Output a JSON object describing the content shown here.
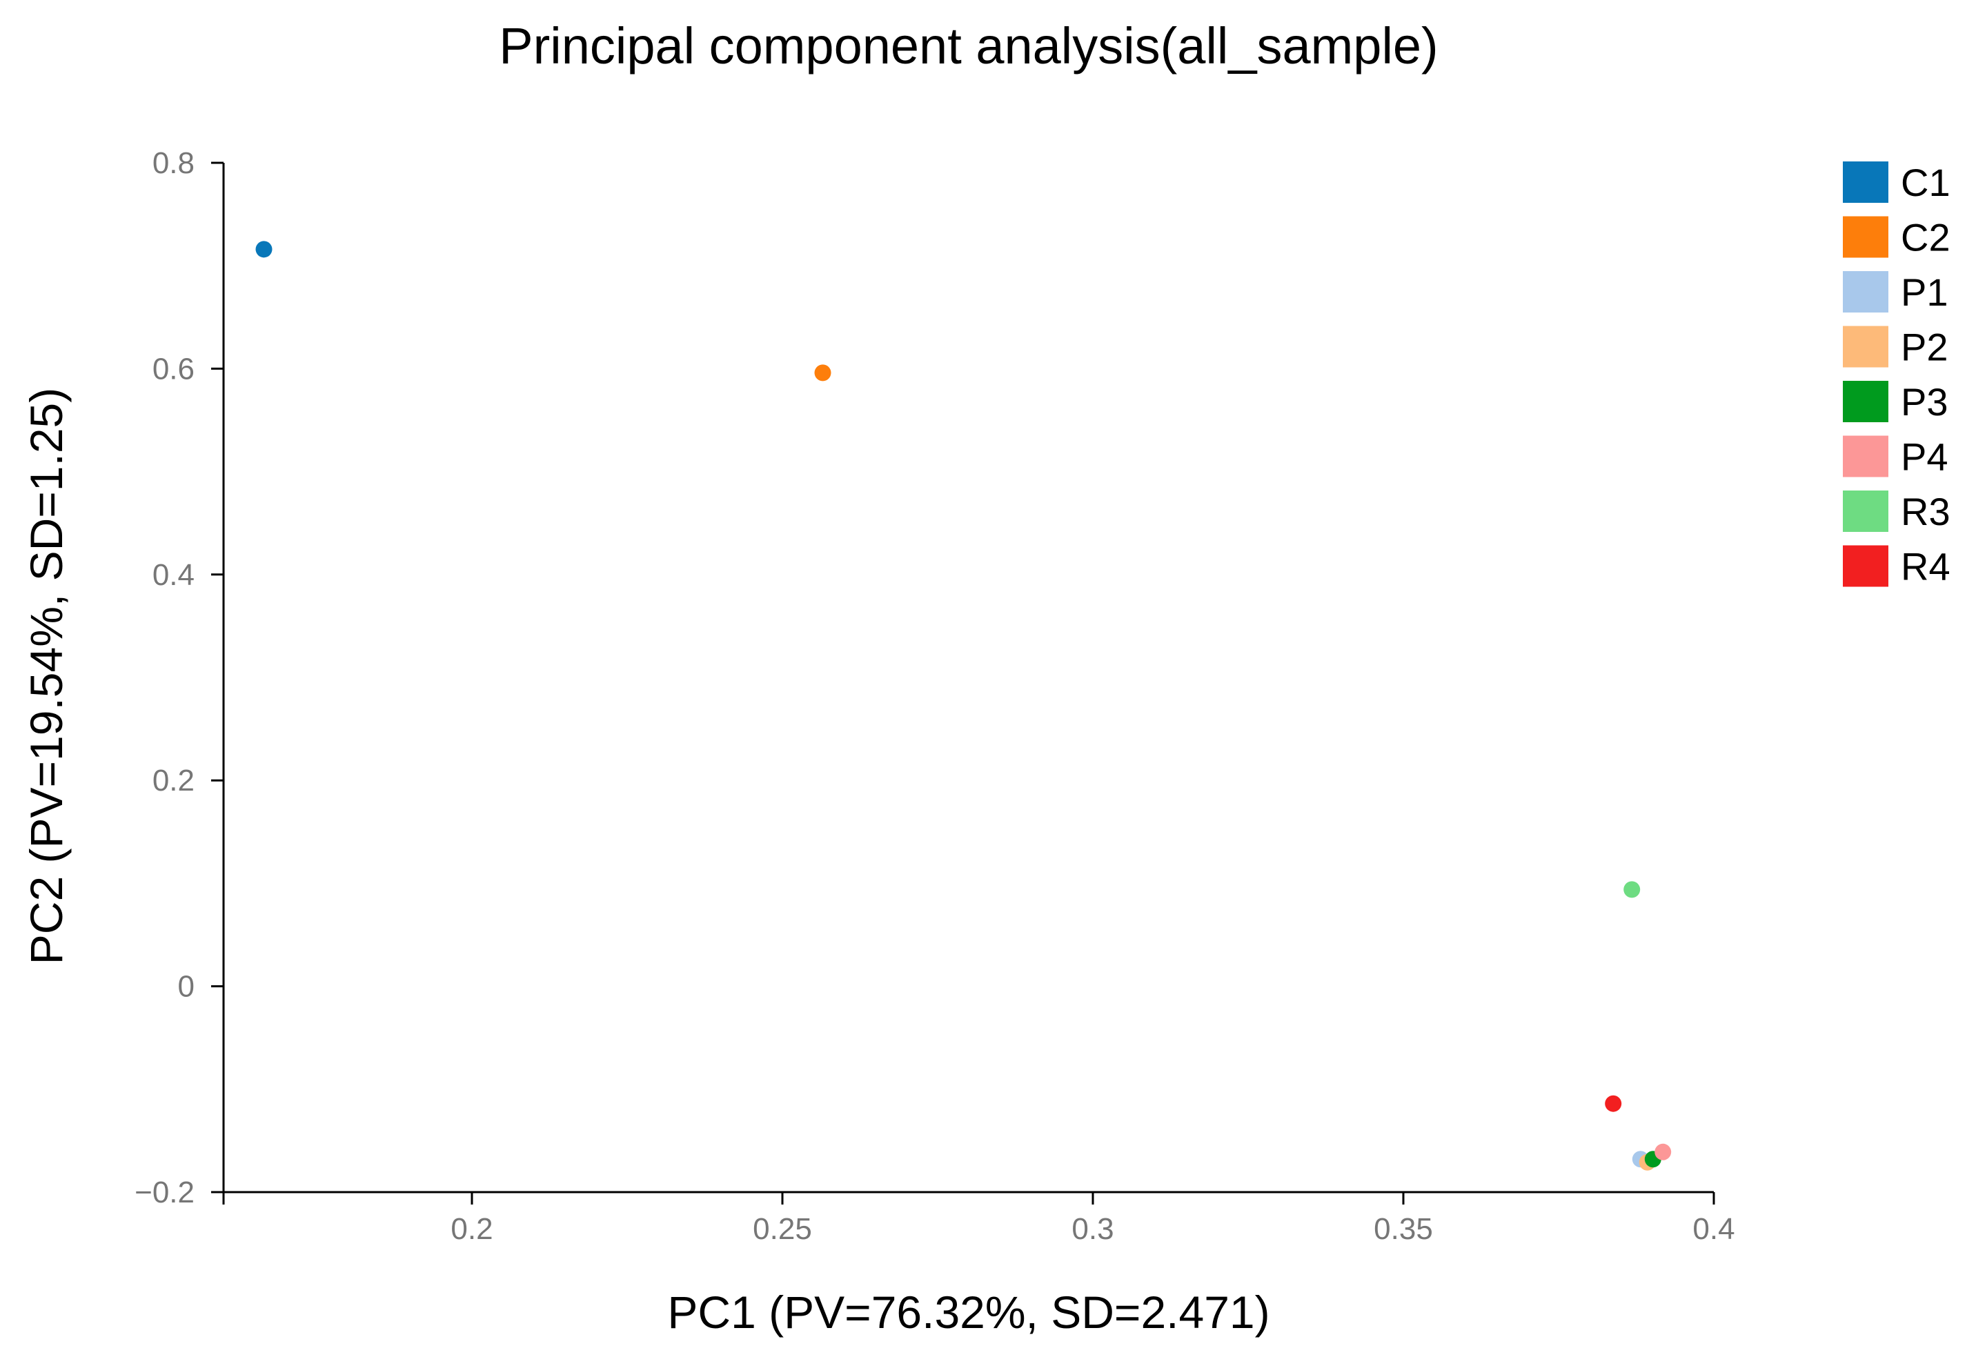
{
  "chart_data": {
    "type": "scatter",
    "title": "Principal component analysis(all_sample)",
    "xlabel": "PC1 (PV=76.32%, SD=2.471)",
    "ylabel": "PC2 (PV=19.54%, SD=1.25)",
    "xlim": [
      0.16,
      0.4
    ],
    "ylim": [
      -0.2,
      0.8
    ],
    "xticks": [
      0.2,
      0.25,
      0.3,
      0.35,
      0.4
    ],
    "xtick_labels": [
      "0.2",
      "0.25",
      "0.3",
      "0.35",
      "0.4"
    ],
    "yticks": [
      -0.2,
      0,
      0.2,
      0.4,
      0.6,
      0.8
    ],
    "ytick_labels": [
      "−0.2",
      "0",
      "0.2",
      "0.4",
      "0.6",
      "0.8"
    ],
    "grid": false,
    "legend_position": "top-right",
    "series": [
      {
        "name": "C1",
        "color": "#0877b9",
        "x": 0.1665,
        "y": 0.716
      },
      {
        "name": "C2",
        "color": "#fd7e0b",
        "x": 0.2565,
        "y": 0.596
      },
      {
        "name": "P1",
        "color": "#a8c8eb",
        "x": 0.3882,
        "y": -0.168
      },
      {
        "name": "P2",
        "color": "#fdba79",
        "x": 0.3893,
        "y": -0.171
      },
      {
        "name": "P3",
        "color": "#009b1e",
        "x": 0.3902,
        "y": -0.168
      },
      {
        "name": "P4",
        "color": "#fc9797",
        "x": 0.3918,
        "y": -0.161
      },
      {
        "name": "R3",
        "color": "#6edc82",
        "x": 0.3868,
        "y": 0.094
      },
      {
        "name": "R4",
        "color": "#f21f20",
        "x": 0.3838,
        "y": -0.114
      }
    ]
  }
}
